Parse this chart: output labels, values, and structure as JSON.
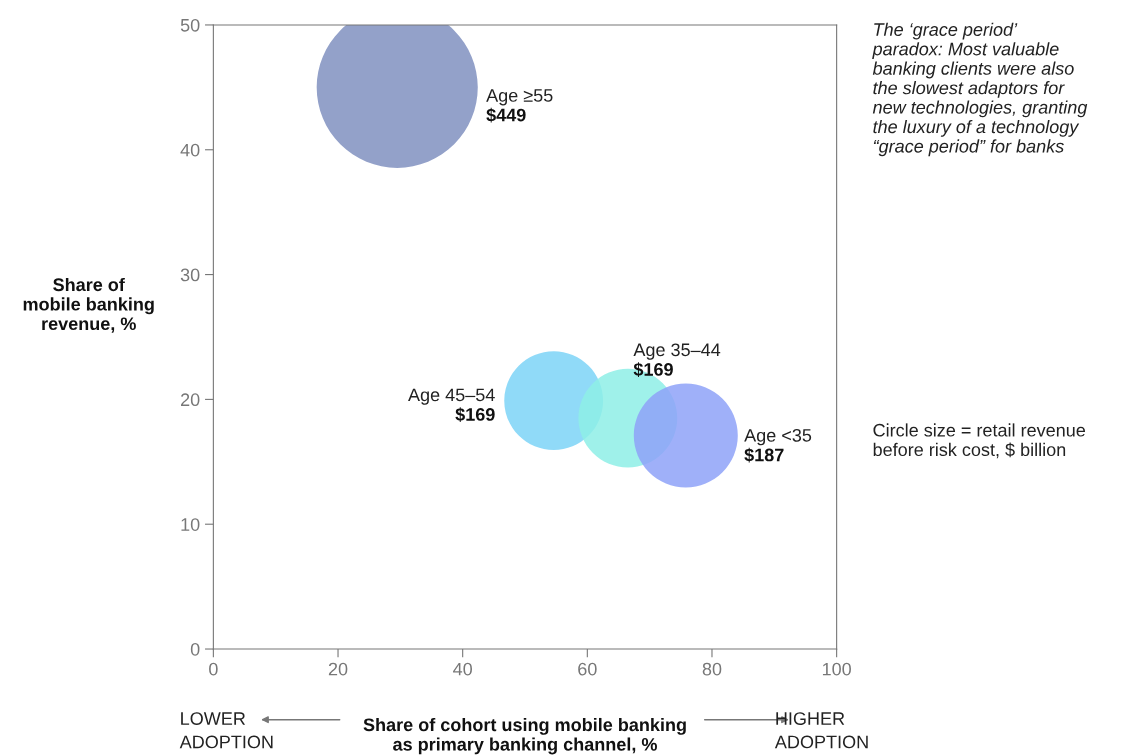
{
  "chart_data": {
    "type": "bubble",
    "xlabel": "Share of cohort using mobile banking\nas primary banking channel, %",
    "ylabel": "Share of\nmobile banking\nrevenue, %",
    "xlim": [
      0,
      100
    ],
    "xticks": [
      0,
      20,
      40,
      60,
      80,
      100
    ],
    "ylim": [
      0,
      50
    ],
    "yticks": [
      0,
      10,
      20,
      30,
      40,
      50
    ],
    "grid": false,
    "legend": false,
    "series": [
      {
        "name": "Age ≥55",
        "color": "#8090c0",
        "x": [
          29.5
        ],
        "values": [
          45.0
        ],
        "sizes": [
          449
        ],
        "value_labels": [
          "$449"
        ]
      },
      {
        "name": "Age 45–54",
        "color": "#7dd3f7",
        "x": [
          54.6
        ],
        "values": [
          19.9
        ],
        "sizes": [
          169
        ],
        "value_labels": [
          "$169"
        ]
      },
      {
        "name": "Age 35–44",
        "color": "#8eeee6",
        "x": [
          66.5
        ],
        "values": [
          18.5
        ],
        "sizes": [
          169
        ],
        "value_labels": [
          "$169"
        ]
      },
      {
        "name": "Age <35",
        "color": "#8ea2f8",
        "x": [
          75.8
        ],
        "values": [
          17.1
        ],
        "sizes": [
          187
        ],
        "value_labels": [
          "$187"
        ]
      }
    ],
    "annotations": [
      "The ‘grace period’\nparadox: Most valuable\nbanking clients were also\nthe slowest adaptors for\nnew technologies, granting\nthe luxury of a technology\n“grace period” for banks",
      "Circle size = retail revenue\nbefore risk cost, $ billion",
      "LOWER\nADOPTION",
      "HIGHER\nADOPTION"
    ]
  }
}
